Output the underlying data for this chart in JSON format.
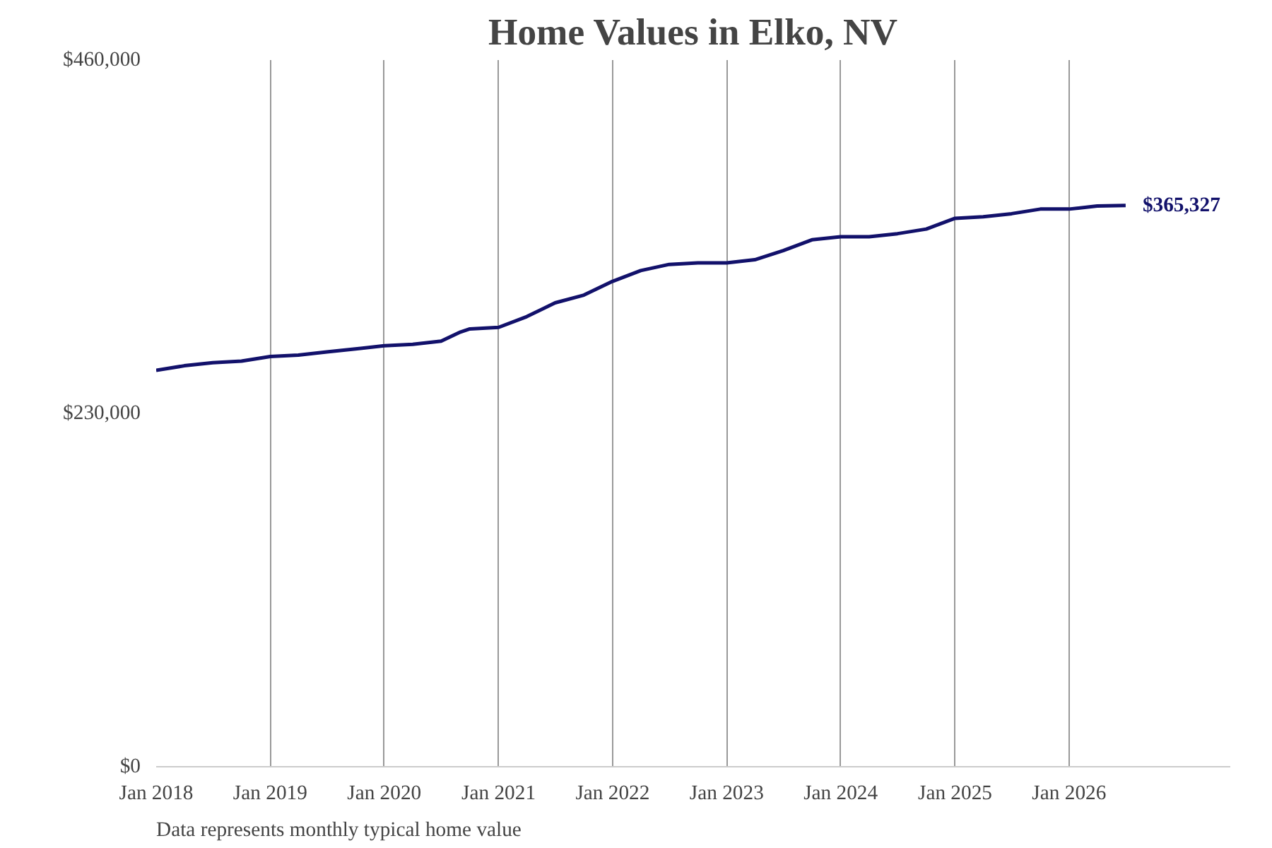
{
  "chart_data": {
    "type": "line",
    "title": "Home Values in Elko, NV",
    "x": [
      "2018-01",
      "2018-04",
      "2018-07",
      "2018-10",
      "2019-01",
      "2019-04",
      "2019-07",
      "2019-10",
      "2020-01",
      "2020-04",
      "2020-07",
      "2020-09",
      "2020-10",
      "2021-01",
      "2021-04",
      "2021-07",
      "2021-10",
      "2022-01",
      "2022-04",
      "2022-07",
      "2022-10",
      "2023-01",
      "2023-04",
      "2023-07",
      "2023-10",
      "2024-01",
      "2024-04",
      "2024-07",
      "2024-10",
      "2025-01",
      "2025-04",
      "2025-07",
      "2025-10",
      "2026-01",
      "2026-04",
      "2026-07"
    ],
    "series": [
      {
        "color": "#12116b",
        "values": [
          258000,
          261000,
          263000,
          264000,
          267000,
          268000,
          270000,
          272000,
          274000,
          275000,
          277000,
          283000,
          285000,
          286000,
          293000,
          302000,
          307000,
          316000,
          323000,
          327000,
          328000,
          328000,
          330000,
          336000,
          343000,
          345000,
          345000,
          347000,
          350000,
          357000,
          358000,
          360000,
          363000,
          363000,
          365000,
          365327
        ]
      }
    ],
    "xticks": [
      {
        "value": "2018-01",
        "label": "Jan 2018"
      },
      {
        "value": "2019-01",
        "label": "Jan 2019"
      },
      {
        "value": "2020-01",
        "label": "Jan 2020"
      },
      {
        "value": "2021-01",
        "label": "Jan 2021"
      },
      {
        "value": "2022-01",
        "label": "Jan 2022"
      },
      {
        "value": "2023-01",
        "label": "Jan 2023"
      },
      {
        "value": "2024-01",
        "label": "Jan 2024"
      },
      {
        "value": "2025-01",
        "label": "Jan 2025"
      },
      {
        "value": "2026-01",
        "label": "Jan 2026"
      }
    ],
    "xlim": [
      "2018-01",
      "2027-06"
    ],
    "ylim": [
      0,
      460000
    ],
    "yticks": [
      {
        "value": 0,
        "label": "$0"
      },
      {
        "value": 230000,
        "label": "$230,000"
      },
      {
        "value": 460000,
        "label": "$460,000"
      }
    ],
    "grid": "x",
    "marker": "none",
    "line_style": "solid",
    "annotations": [
      {
        "text": "$365,327",
        "x": "2026-07",
        "y": 365327
      },
      "Data represents monthly typical home value"
    ]
  }
}
